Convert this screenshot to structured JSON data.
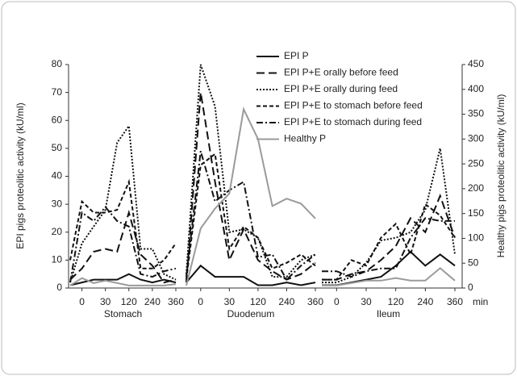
{
  "chart_data": {
    "type": "line",
    "y_label": "EPI pigs proteolitic activity (kU/ml)",
    "y2_label": "Healthy pigs proteolitic activity (kU/ml)",
    "x_unit": "min",
    "groups": [
      "Stomach",
      "Duodenum",
      "Ileum"
    ],
    "categories": [
      null,
      "0",
      null,
      "30",
      null,
      "120",
      null,
      "240",
      null,
      "360",
      null,
      null,
      "0",
      null,
      "30",
      null,
      "120",
      null,
      "240",
      null,
      "360",
      null,
      null,
      "0",
      null,
      "30",
      null,
      "120",
      null,
      "240",
      null,
      "360"
    ],
    "ylim": [
      0,
      80
    ],
    "yticks": [
      0,
      10,
      20,
      30,
      40,
      50,
      60,
      70,
      80
    ],
    "y2lim": [
      0,
      450
    ],
    "y2ticks": [
      0,
      50,
      100,
      150,
      200,
      250,
      300,
      350,
      400,
      450
    ],
    "series": [
      {
        "name": "EPI P",
        "color": "#111111",
        "style": "solid",
        "values": [
          1,
          2,
          3,
          3,
          3,
          5,
          3,
          2,
          3,
          2,
          null,
          2,
          8,
          4,
          4,
          4,
          1,
          1,
          2,
          1,
          2,
          null,
          1,
          1,
          2,
          3,
          4,
          8,
          13,
          8,
          12,
          8
        ]
      },
      {
        "name": "EPI P+E orally before feed",
        "color": "#111111",
        "style": "long-dash",
        "values": [
          3,
          7,
          13,
          14,
          13,
          27,
          12,
          8,
          2,
          3,
          null,
          2,
          70,
          38,
          10,
          21,
          10,
          6,
          3,
          5,
          9,
          null,
          3,
          3,
          5,
          6,
          10,
          15,
          25,
          20,
          33,
          18
        ]
      },
      {
        "name": "EPI P+E orally during feed",
        "color": "#111111",
        "style": "dotted",
        "values": [
          2,
          16,
          22,
          28,
          52,
          58,
          14,
          14,
          5,
          3,
          null,
          5,
          80,
          65,
          20,
          21,
          18,
          4,
          4,
          10,
          12,
          null,
          2,
          2,
          4,
          9,
          17,
          18,
          20,
          28,
          50,
          12
        ]
      },
      {
        "name": "EPI P+E to stomach before feed",
        "color": "#111111",
        "style": "short-dash",
        "values": [
          10,
          31,
          27,
          27,
          28,
          38,
          7,
          7,
          10,
          16,
          null,
          3,
          44,
          48,
          14,
          22,
          18,
          7,
          9,
          12,
          8,
          null,
          3,
          3,
          10,
          8,
          18,
          23,
          12,
          30,
          26,
          18
        ]
      },
      {
        "name": "EPI P+E to stomach during feed",
        "color": "#111111",
        "style": "dash-dot",
        "values": [
          2,
          27,
          24,
          29,
          24,
          22,
          5,
          4,
          6,
          7,
          null,
          4,
          49,
          31,
          35,
          38,
          11,
          12,
          3,
          8,
          12,
          null,
          6,
          6,
          4,
          6,
          7,
          7,
          18,
          25,
          24,
          24
        ]
      },
      {
        "name": "Healthy P",
        "color": "#9a9a9a",
        "style": "solid",
        "axis": "y2",
        "values": [
          5,
          20,
          10,
          15,
          10,
          5,
          5,
          5,
          5,
          8,
          null,
          5,
          120,
          160,
          190,
          360,
          300,
          165,
          180,
          170,
          140,
          null,
          5,
          5,
          10,
          15,
          15,
          20,
          15,
          15,
          40,
          15
        ]
      }
    ]
  }
}
